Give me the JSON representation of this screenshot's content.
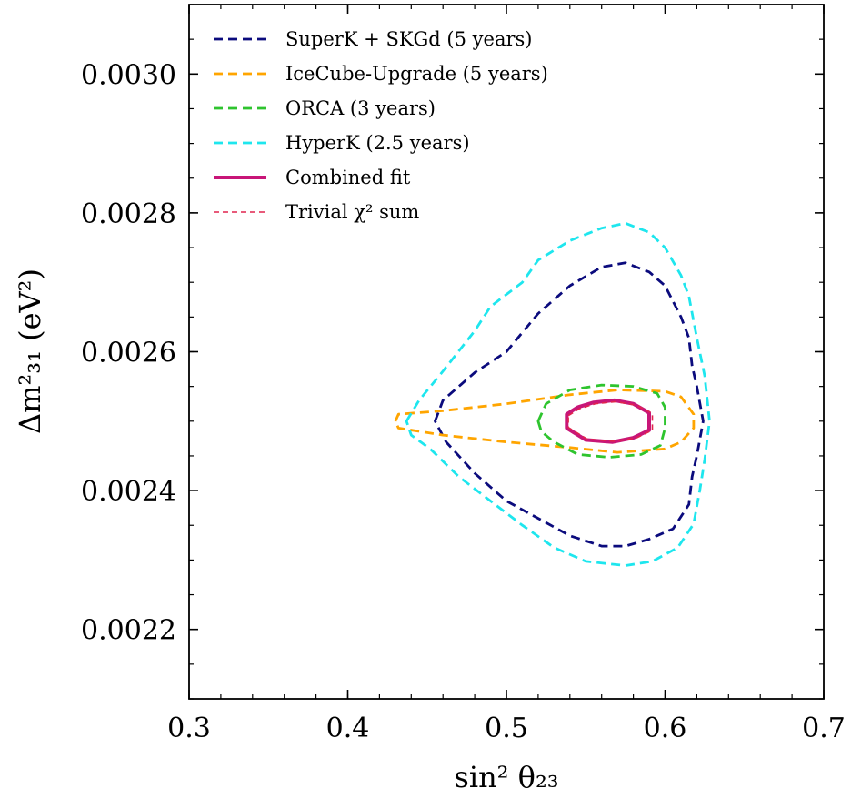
{
  "chart_data": {
    "type": "line",
    "xlabel": "sin² θ₂₃",
    "ylabel": "Δm²₃₁ (eV²)",
    "xlim": [
      0.3,
      0.7
    ],
    "ylim": [
      0.0021,
      0.0031
    ],
    "x_ticks": [
      0.3,
      0.4,
      0.5,
      0.6,
      0.7
    ],
    "x_tick_labels": [
      "0.3",
      "0.4",
      "0.5",
      "0.6",
      "0.7"
    ],
    "y_ticks": [
      0.0022,
      0.0024,
      0.0026,
      0.0028,
      0.003
    ],
    "y_tick_labels": [
      "0.0022",
      "0.0024",
      "0.0026",
      "0.0028",
      "0.0030"
    ],
    "grid": false,
    "legend_position": "top-left",
    "series": [
      {
        "name": "SuperK + SKGd (5 years)",
        "color": "#0b0b7d",
        "style": "dashed",
        "points": [
          [
            0.455,
            0.0025
          ],
          [
            0.46,
            0.00253
          ],
          [
            0.48,
            0.00257
          ],
          [
            0.5,
            0.0026
          ],
          [
            0.52,
            0.002655
          ],
          [
            0.54,
            0.002695
          ],
          [
            0.56,
            0.002722
          ],
          [
            0.575,
            0.002728
          ],
          [
            0.59,
            0.002715
          ],
          [
            0.6,
            0.002695
          ],
          [
            0.61,
            0.00265
          ],
          [
            0.615,
            0.00262
          ],
          [
            0.617,
            0.00258
          ],
          [
            0.62,
            0.00255
          ],
          [
            0.624,
            0.0025
          ],
          [
            0.62,
            0.00245
          ],
          [
            0.617,
            0.00242
          ],
          [
            0.615,
            0.00238
          ],
          [
            0.605,
            0.002345
          ],
          [
            0.59,
            0.00233
          ],
          [
            0.575,
            0.00232
          ],
          [
            0.56,
            0.00232
          ],
          [
            0.54,
            0.002335
          ],
          [
            0.52,
            0.00236
          ],
          [
            0.5,
            0.002385
          ],
          [
            0.48,
            0.002425
          ],
          [
            0.462,
            0.00247
          ],
          [
            0.455,
            0.0025
          ]
        ]
      },
      {
        "name": "IceCube-Upgrade (5 years)",
        "color": "#ffa500",
        "style": "dashed",
        "points": [
          [
            0.43,
            0.0025
          ],
          [
            0.432,
            0.00251
          ],
          [
            0.46,
            0.002515
          ],
          [
            0.5,
            0.002525
          ],
          [
            0.54,
            0.002538
          ],
          [
            0.57,
            0.002545
          ],
          [
            0.6,
            0.002543
          ],
          [
            0.61,
            0.002535
          ],
          [
            0.618,
            0.00251
          ],
          [
            0.618,
            0.00249
          ],
          [
            0.61,
            0.00247
          ],
          [
            0.6,
            0.00246
          ],
          [
            0.57,
            0.002455
          ],
          [
            0.54,
            0.002462
          ],
          [
            0.5,
            0.00247
          ],
          [
            0.46,
            0.00248
          ],
          [
            0.432,
            0.00249
          ],
          [
            0.43,
            0.0025
          ]
        ]
      },
      {
        "name": "ORCA (3 years)",
        "color": "#2ec42e",
        "style": "dashed",
        "points": [
          [
            0.52,
            0.0025
          ],
          [
            0.525,
            0.002525
          ],
          [
            0.54,
            0.002545
          ],
          [
            0.56,
            0.002552
          ],
          [
            0.58,
            0.00255
          ],
          [
            0.595,
            0.00254
          ],
          [
            0.6,
            0.00252
          ],
          [
            0.6,
            0.00249
          ],
          [
            0.597,
            0.002465
          ],
          [
            0.585,
            0.002452
          ],
          [
            0.565,
            0.002448
          ],
          [
            0.545,
            0.002452
          ],
          [
            0.53,
            0.00247
          ],
          [
            0.522,
            0.002485
          ],
          [
            0.52,
            0.0025
          ]
        ]
      },
      {
        "name": "HyperK (2.5 years)",
        "color": "#1ee6ee",
        "style": "dashed",
        "points": [
          [
            0.437,
            0.0025
          ],
          [
            0.445,
            0.00253
          ],
          [
            0.46,
            0.002572
          ],
          [
            0.48,
            0.00263
          ],
          [
            0.49,
            0.002665
          ],
          [
            0.51,
            0.0027
          ],
          [
            0.52,
            0.002732
          ],
          [
            0.54,
            0.00276
          ],
          [
            0.56,
            0.002778
          ],
          [
            0.575,
            0.002785
          ],
          [
            0.59,
            0.002772
          ],
          [
            0.6,
            0.00275
          ],
          [
            0.61,
            0.00271
          ],
          [
            0.615,
            0.00268
          ],
          [
            0.62,
            0.00262
          ],
          [
            0.625,
            0.002565
          ],
          [
            0.628,
            0.0025
          ],
          [
            0.625,
            0.002445
          ],
          [
            0.622,
            0.002402
          ],
          [
            0.618,
            0.002352
          ],
          [
            0.608,
            0.002318
          ],
          [
            0.592,
            0.002298
          ],
          [
            0.575,
            0.002292
          ],
          [
            0.55,
            0.002298
          ],
          [
            0.53,
            0.002318
          ],
          [
            0.51,
            0.00235
          ],
          [
            0.49,
            0.002385
          ],
          [
            0.47,
            0.00242
          ],
          [
            0.452,
            0.00246
          ],
          [
            0.44,
            0.00248
          ],
          [
            0.437,
            0.0025
          ]
        ]
      },
      {
        "name": "Combined fit",
        "color": "#c81678",
        "style": "solid",
        "points": [
          [
            0.538,
            0.00251
          ],
          [
            0.545,
            0.00252
          ],
          [
            0.555,
            0.002527
          ],
          [
            0.568,
            0.00253
          ],
          [
            0.58,
            0.002525
          ],
          [
            0.59,
            0.002512
          ],
          [
            0.59,
            0.002487
          ],
          [
            0.58,
            0.002476
          ],
          [
            0.567,
            0.00247
          ],
          [
            0.55,
            0.002473
          ],
          [
            0.538,
            0.00249
          ],
          [
            0.538,
            0.00251
          ]
        ]
      },
      {
        "name": "Trivial χ² sum",
        "color": "#e0244e",
        "style": "thin-dashed",
        "points": [
          [
            0.539,
            0.002508
          ],
          [
            0.546,
            0.002518
          ],
          [
            0.556,
            0.002525
          ],
          [
            0.569,
            0.002528
          ],
          [
            0.582,
            0.002523
          ],
          [
            0.592,
            0.002511
          ],
          [
            0.592,
            0.002487
          ],
          [
            0.582,
            0.002476
          ],
          [
            0.568,
            0.002471
          ],
          [
            0.551,
            0.002474
          ],
          [
            0.539,
            0.002491
          ],
          [
            0.539,
            0.002508
          ]
        ]
      }
    ]
  }
}
